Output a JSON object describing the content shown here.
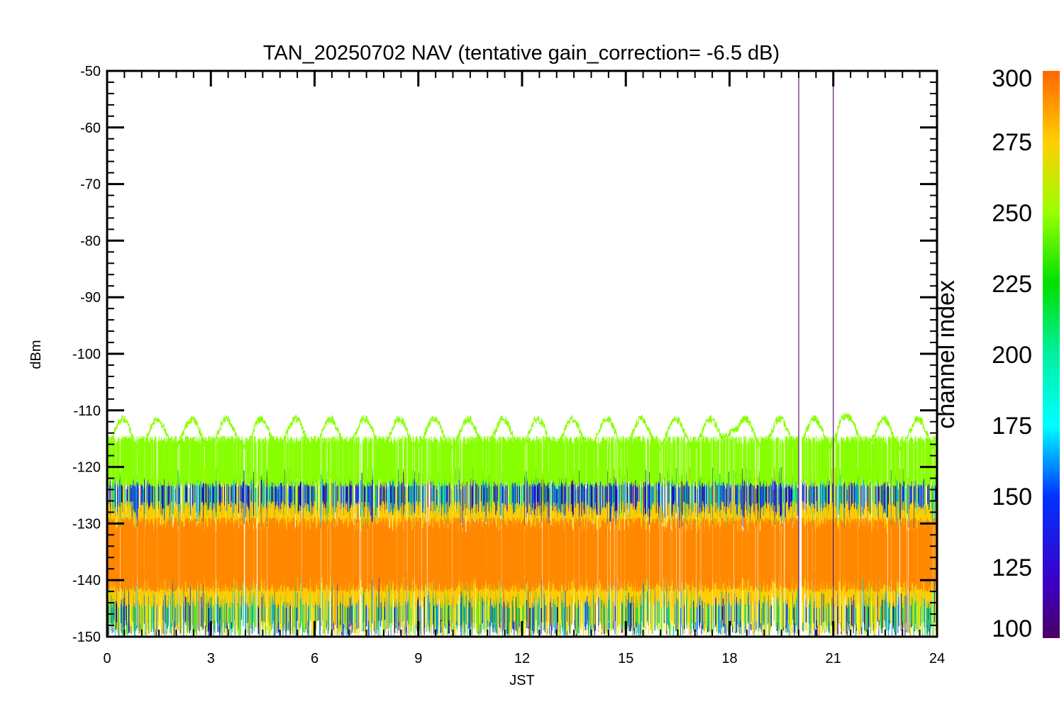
{
  "chart_data": {
    "type": "line",
    "title": "TAN_20250702 NAV (tentative gain_correction= -6.5 dB)",
    "xlabel": "JST",
    "ylabel": "dBm",
    "xlim": [
      0,
      24
    ],
    "ylim": [
      -150,
      -50
    ],
    "xticks": [
      "0",
      "3",
      "6",
      "9",
      "12",
      "15",
      "18",
      "21",
      "24"
    ],
    "yticks": [
      "-50",
      "-60",
      "-70",
      "-80",
      "-90",
      "-100",
      "-110",
      "-120",
      "-130",
      "-140",
      "-150"
    ],
    "grid": false,
    "colorbar": {
      "label": "channel index",
      "range": [
        100,
        300
      ],
      "ticks": [
        "300",
        "275",
        "250",
        "225",
        "200",
        "175",
        "150",
        "125",
        "100"
      ],
      "colormap": "rainbow"
    },
    "data_gap": {
      "x_start": 20.0,
      "x_end": 20.1
    },
    "markers": [
      {
        "x": 20.0,
        "color": "#5a1a6e"
      },
      {
        "x": 21.0,
        "color": "#5a1a6e"
      }
    ],
    "series": [
      {
        "band": "upper envelope (ch ~245)",
        "color": "#88ff00",
        "center": -114,
        "amplitude": 2.5,
        "period_hours": 1.0,
        "peaks": [
          {
            "x": 18.0,
            "y": -109
          },
          {
            "x": 21.2,
            "y": -109.5
          }
        ]
      },
      {
        "band": "green band (ch ~240-250)",
        "color": "#88ff00",
        "low": -122,
        "high": -116
      },
      {
        "band": "mixed channels (ch 150-275)",
        "low": -128,
        "high": -120
      },
      {
        "band": "core band (ch ~285-300)",
        "color": "#ff8800",
        "low": -141,
        "high": -130
      },
      {
        "band": "lower noise floor (ch 150-275)",
        "low": -147,
        "high": -140
      }
    ]
  }
}
